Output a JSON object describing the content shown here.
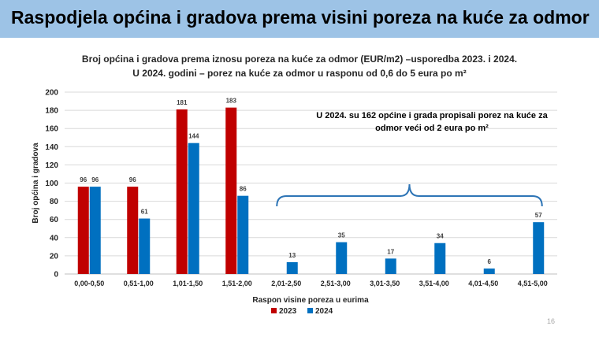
{
  "header": {
    "title": "Raspodjela općina i gradova prema visini poreza na kuće za odmor"
  },
  "page_number": "16",
  "colors": {
    "header_bg": "#9dc3e6",
    "series_2023": "#c00000",
    "series_2024": "#0070c0",
    "brace": "#2e75b6"
  },
  "chart_data": {
    "type": "bar",
    "title": "Broj općina i gradova prema iznosu poreza na kuće za odmor (EUR/m2) –usporedba 2023. i 2024.",
    "subtitle": "U 2024. godini – porez na kuće za odmor u rasponu od 0,6 do 5 eura po m²",
    "xlabel": "Raspon visine poreza u eurima",
    "ylabel": "Broj općina i gradova",
    "ylim": [
      0,
      200
    ],
    "yticks": [
      "0",
      "20",
      "40",
      "60",
      "80",
      "100",
      "120",
      "140",
      "160",
      "180",
      "200"
    ],
    "categories": [
      "0,00-0,50",
      "0,51-1,00",
      "1,01-1,50",
      "1,51-2,00",
      "2,01-2,50",
      "2,51-3,00",
      "3,01-3,50",
      "3,51-4,00",
      "4,01-4,50",
      "4,51-5,00"
    ],
    "series": [
      {
        "name": "2023",
        "values": [
          96,
          96,
          181,
          183,
          null,
          null,
          null,
          null,
          null,
          null
        ]
      },
      {
        "name": "2024",
        "values": [
          96,
          61,
          144,
          86,
          13,
          35,
          17,
          34,
          6,
          57
        ]
      }
    ],
    "legend": "bottom",
    "annotation": "U 2024. su 162 općine i grada propisali porez na kuće za odmor veći od 2 eura po m²",
    "annotation_lines": [
      "U 2024. su 162 općine i grada propisali porez na kuće za",
      "odmor veći od 2 eura po m²"
    ]
  }
}
